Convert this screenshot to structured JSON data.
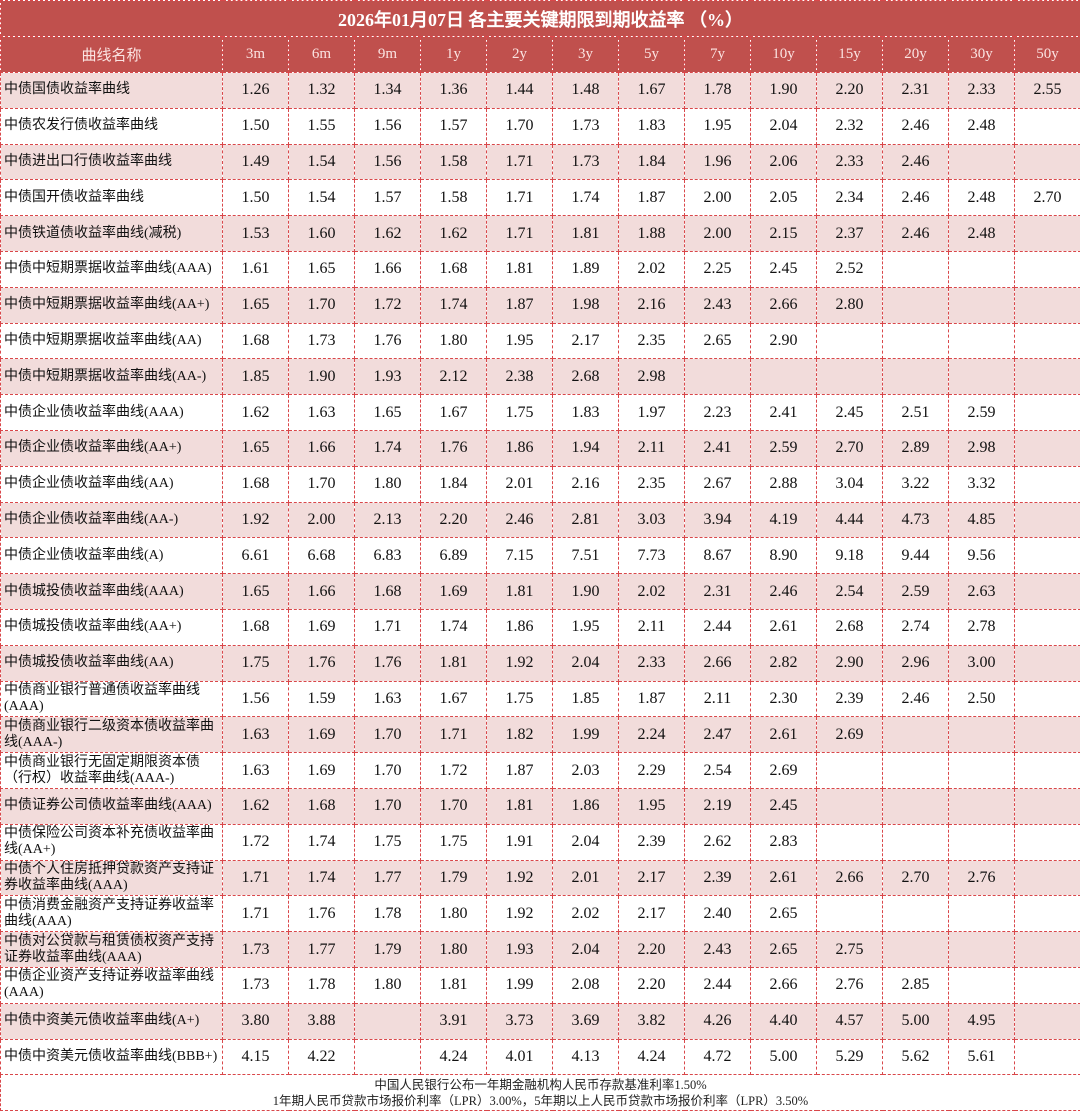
{
  "title": "2026年01月07日  各主要关键期限到期收益率  （%）",
  "columns": [
    "曲线名称",
    "3m",
    "6m",
    "9m",
    "1y",
    "2y",
    "3y",
    "5y",
    "7y",
    "10y",
    "15y",
    "20y",
    "30y",
    "50y"
  ],
  "colors": {
    "header_bg": "#c0504d",
    "row_alt_bg": "#f2dcdb",
    "border": "#d9474a"
  },
  "rows": [
    {
      "name": "中债国债收益率曲线",
      "values": [
        "1.26",
        "1.32",
        "1.34",
        "1.36",
        "1.44",
        "1.48",
        "1.67",
        "1.78",
        "1.90",
        "2.20",
        "2.31",
        "2.33",
        "2.55"
      ]
    },
    {
      "name": "中债农发行债收益率曲线",
      "values": [
        "1.50",
        "1.55",
        "1.56",
        "1.57",
        "1.70",
        "1.73",
        "1.83",
        "1.95",
        "2.04",
        "2.32",
        "2.46",
        "2.48",
        ""
      ]
    },
    {
      "name": "中债进出口行债收益率曲线",
      "values": [
        "1.49",
        "1.54",
        "1.56",
        "1.58",
        "1.71",
        "1.73",
        "1.84",
        "1.96",
        "2.06",
        "2.33",
        "2.46",
        "",
        ""
      ]
    },
    {
      "name": "中债国开债收益率曲线",
      "values": [
        "1.50",
        "1.54",
        "1.57",
        "1.58",
        "1.71",
        "1.74",
        "1.87",
        "2.00",
        "2.05",
        "2.34",
        "2.46",
        "2.48",
        "2.70"
      ]
    },
    {
      "name": "中债铁道债收益率曲线(减税)",
      "values": [
        "1.53",
        "1.60",
        "1.62",
        "1.62",
        "1.71",
        "1.81",
        "1.88",
        "2.00",
        "2.15",
        "2.37",
        "2.46",
        "2.48",
        ""
      ]
    },
    {
      "name": "中债中短期票据收益率曲线(AAA)",
      "values": [
        "1.61",
        "1.65",
        "1.66",
        "1.68",
        "1.81",
        "1.89",
        "2.02",
        "2.25",
        "2.45",
        "2.52",
        "",
        "",
        ""
      ]
    },
    {
      "name": "中债中短期票据收益率曲线(AA+)",
      "values": [
        "1.65",
        "1.70",
        "1.72",
        "1.74",
        "1.87",
        "1.98",
        "2.16",
        "2.43",
        "2.66",
        "2.80",
        "",
        "",
        ""
      ]
    },
    {
      "name": "中债中短期票据收益率曲线(AA)",
      "values": [
        "1.68",
        "1.73",
        "1.76",
        "1.80",
        "1.95",
        "2.17",
        "2.35",
        "2.65",
        "2.90",
        "",
        "",
        "",
        ""
      ]
    },
    {
      "name": "中债中短期票据收益率曲线(AA-)",
      "values": [
        "1.85",
        "1.90",
        "1.93",
        "2.12",
        "2.38",
        "2.68",
        "2.98",
        "",
        "",
        "",
        "",
        "",
        ""
      ]
    },
    {
      "name": "中债企业债收益率曲线(AAA)",
      "values": [
        "1.62",
        "1.63",
        "1.65",
        "1.67",
        "1.75",
        "1.83",
        "1.97",
        "2.23",
        "2.41",
        "2.45",
        "2.51",
        "2.59",
        ""
      ]
    },
    {
      "name": "中债企业债收益率曲线(AA+)",
      "values": [
        "1.65",
        "1.66",
        "1.74",
        "1.76",
        "1.86",
        "1.94",
        "2.11",
        "2.41",
        "2.59",
        "2.70",
        "2.89",
        "2.98",
        ""
      ]
    },
    {
      "name": "中债企业债收益率曲线(AA)",
      "values": [
        "1.68",
        "1.70",
        "1.80",
        "1.84",
        "2.01",
        "2.16",
        "2.35",
        "2.67",
        "2.88",
        "3.04",
        "3.22",
        "3.32",
        ""
      ]
    },
    {
      "name": "中债企业债收益率曲线(AA-)",
      "values": [
        "1.92",
        "2.00",
        "2.13",
        "2.20",
        "2.46",
        "2.81",
        "3.03",
        "3.94",
        "4.19",
        "4.44",
        "4.73",
        "4.85",
        ""
      ]
    },
    {
      "name": "中债企业债收益率曲线(A)",
      "values": [
        "6.61",
        "6.68",
        "6.83",
        "6.89",
        "7.15",
        "7.51",
        "7.73",
        "8.67",
        "8.90",
        "9.18",
        "9.44",
        "9.56",
        ""
      ]
    },
    {
      "name": "中债城投债收益率曲线(AAA)",
      "values": [
        "1.65",
        "1.66",
        "1.68",
        "1.69",
        "1.81",
        "1.90",
        "2.02",
        "2.31",
        "2.46",
        "2.54",
        "2.59",
        "2.63",
        ""
      ]
    },
    {
      "name": "中债城投债收益率曲线(AA+)",
      "values": [
        "1.68",
        "1.69",
        "1.71",
        "1.74",
        "1.86",
        "1.95",
        "2.11",
        "2.44",
        "2.61",
        "2.68",
        "2.74",
        "2.78",
        ""
      ]
    },
    {
      "name": "中债城投债收益率曲线(AA)",
      "values": [
        "1.75",
        "1.76",
        "1.76",
        "1.81",
        "1.92",
        "2.04",
        "2.33",
        "2.66",
        "2.82",
        "2.90",
        "2.96",
        "3.00",
        ""
      ]
    },
    {
      "name": "中债商业银行普通债收益率曲线(AAA)",
      "values": [
        "1.56",
        "1.59",
        "1.63",
        "1.67",
        "1.75",
        "1.85",
        "1.87",
        "2.11",
        "2.30",
        "2.39",
        "2.46",
        "2.50",
        ""
      ]
    },
    {
      "name": "中债商业银行二级资本债收益率曲线(AAA-)",
      "values": [
        "1.63",
        "1.69",
        "1.70",
        "1.71",
        "1.82",
        "1.99",
        "2.24",
        "2.47",
        "2.61",
        "2.69",
        "",
        "",
        ""
      ]
    },
    {
      "name": "中债商业银行无固定期限资本债（行权）收益率曲线(AAA-)",
      "values": [
        "1.63",
        "1.69",
        "1.70",
        "1.72",
        "1.87",
        "2.03",
        "2.29",
        "2.54",
        "2.69",
        "",
        "",
        "",
        ""
      ]
    },
    {
      "name": "中债证券公司债收益率曲线(AAA)",
      "values": [
        "1.62",
        "1.68",
        "1.70",
        "1.70",
        "1.81",
        "1.86",
        "1.95",
        "2.19",
        "2.45",
        "",
        "",
        "",
        ""
      ]
    },
    {
      "name": "中债保险公司资本补充债收益率曲线(AA+)",
      "values": [
        "1.72",
        "1.74",
        "1.75",
        "1.75",
        "1.91",
        "2.04",
        "2.39",
        "2.62",
        "2.83",
        "",
        "",
        "",
        ""
      ]
    },
    {
      "name": "中债个人住房抵押贷款资产支持证券收益率曲线(AAA)",
      "values": [
        "1.71",
        "1.74",
        "1.77",
        "1.79",
        "1.92",
        "2.01",
        "2.17",
        "2.39",
        "2.61",
        "2.66",
        "2.70",
        "2.76",
        ""
      ]
    },
    {
      "name": "中债消费金融资产支持证券收益率曲线(AAA)",
      "values": [
        "1.71",
        "1.76",
        "1.78",
        "1.80",
        "1.92",
        "2.02",
        "2.17",
        "2.40",
        "2.65",
        "",
        "",
        "",
        ""
      ]
    },
    {
      "name": "中债对公贷款与租赁债权资产支持证券收益率曲线(AAA)",
      "values": [
        "1.73",
        "1.77",
        "1.79",
        "1.80",
        "1.93",
        "2.04",
        "2.20",
        "2.43",
        "2.65",
        "2.75",
        "",
        "",
        ""
      ]
    },
    {
      "name": "中债企业资产支持证券收益率曲线(AAA)",
      "values": [
        "1.73",
        "1.78",
        "1.80",
        "1.81",
        "1.99",
        "2.08",
        "2.20",
        "2.44",
        "2.66",
        "2.76",
        "2.85",
        "",
        ""
      ]
    },
    {
      "name": "中债中资美元债收益率曲线(A+)",
      "values": [
        "3.80",
        "3.88",
        "",
        "3.91",
        "3.73",
        "3.69",
        "3.82",
        "4.26",
        "4.40",
        "4.57",
        "5.00",
        "4.95",
        ""
      ]
    },
    {
      "name": "中债中资美元债收益率曲线(BBB+)",
      "values": [
        "4.15",
        "4.22",
        "",
        "4.24",
        "4.01",
        "4.13",
        "4.24",
        "4.72",
        "5.00",
        "5.29",
        "5.62",
        "5.61",
        ""
      ]
    }
  ],
  "footer": {
    "line1": "中国人民银行公布一年期金融机构人民币存款基准利率1.50%",
    "line2": "1年期人民币贷款市场报价利率（LPR）3.00%，5年期以上人民币贷款市场报价利率（LPR）3.50%"
  }
}
